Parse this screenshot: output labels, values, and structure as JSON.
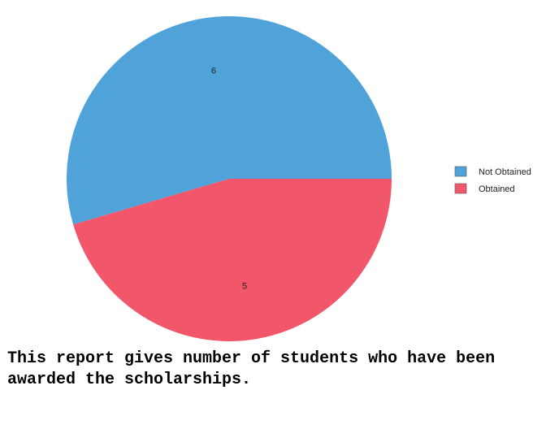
{
  "chart_data": {
    "type": "pie",
    "categories": [
      "Not Obtained",
      "Obtained"
    ],
    "values": [
      6,
      5
    ],
    "colors": [
      "#4fa3d9",
      "#f1566a"
    ],
    "data_labels": [
      "6",
      "5"
    ],
    "legend": {
      "position": "right",
      "entries": [
        "Not Obtained",
        "Obtained"
      ]
    },
    "start_angle": "3 o'clock",
    "direction": "counter-clockwise"
  },
  "caption": "This report gives number of students who have been awarded the scholarships."
}
